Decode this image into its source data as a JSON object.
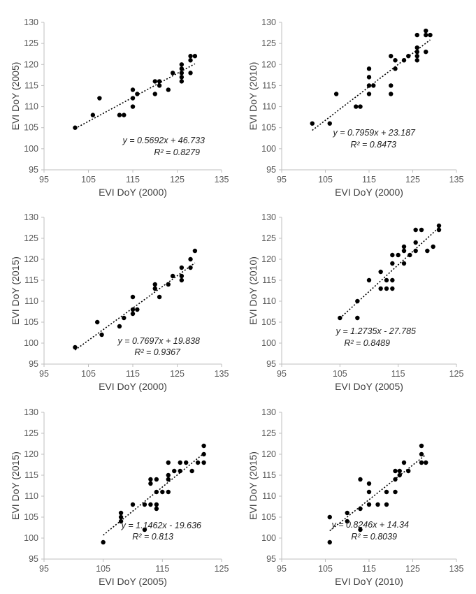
{
  "chart_data": [
    {
      "type": "scatter",
      "xlabel": "EVI DoY (2000)",
      "ylabel": "EVI DoY (2005)",
      "xlim": [
        95,
        135
      ],
      "ylim": [
        95,
        130
      ],
      "xticks": [
        95,
        105,
        115,
        125,
        135
      ],
      "yticks": [
        95,
        100,
        105,
        110,
        115,
        120,
        125,
        130
      ],
      "equation": "y = 0.5692x + 46.733",
      "r2": "R² = 0.8279",
      "trend": {
        "slope": 0.5692,
        "intercept": 46.733,
        "xrange": [
          102,
          129
        ]
      },
      "points": [
        [
          102,
          105
        ],
        [
          106,
          108
        ],
        [
          107.5,
          112
        ],
        [
          112,
          108
        ],
        [
          113,
          108
        ],
        [
          115,
          110
        ],
        [
          115,
          112
        ],
        [
          115,
          114
        ],
        [
          116,
          113
        ],
        [
          120,
          116
        ],
        [
          120,
          113
        ],
        [
          121,
          115
        ],
        [
          121,
          116
        ],
        [
          123,
          114
        ],
        [
          124,
          118
        ],
        [
          126,
          116
        ],
        [
          126,
          117
        ],
        [
          126,
          118
        ],
        [
          126,
          119
        ],
        [
          126,
          120
        ],
        [
          128,
          118
        ],
        [
          128,
          121
        ],
        [
          128,
          122
        ],
        [
          129,
          122
        ]
      ]
    },
    {
      "type": "scatter",
      "xlabel": "EVI DoY (2000)",
      "ylabel": "EVI DoY (2010)",
      "xlim": [
        95,
        135
      ],
      "ylim": [
        95,
        130
      ],
      "xticks": [
        95,
        105,
        115,
        125,
        135
      ],
      "yticks": [
        95,
        100,
        105,
        110,
        115,
        120,
        125,
        130
      ],
      "equation": "y = 0.7959x + 23.187",
      "r2": "R² = 0.8473",
      "trend": {
        "slope": 0.7959,
        "intercept": 23.187,
        "xrange": [
          102,
          129
        ]
      },
      "points": [
        [
          102,
          106
        ],
        [
          106,
          106
        ],
        [
          107.5,
          113
        ],
        [
          112,
          110
        ],
        [
          113,
          110
        ],
        [
          115,
          113
        ],
        [
          115,
          115
        ],
        [
          115,
          117
        ],
        [
          115,
          119
        ],
        [
          116,
          115
        ],
        [
          120,
          113
        ],
        [
          120,
          115
        ],
        [
          120,
          122
        ],
        [
          121,
          119
        ],
        [
          121,
          121
        ],
        [
          123,
          121
        ],
        [
          124,
          122
        ],
        [
          126,
          121
        ],
        [
          126,
          122
        ],
        [
          126,
          123
        ],
        [
          126,
          124
        ],
        [
          126,
          127
        ],
        [
          128,
          123
        ],
        [
          128,
          127
        ],
        [
          128,
          128
        ],
        [
          129,
          127
        ]
      ]
    },
    {
      "type": "scatter",
      "xlabel": "EVI DoY (2000)",
      "ylabel": "EVI DoY (2015)",
      "xlim": [
        95,
        135
      ],
      "ylim": [
        95,
        130
      ],
      "xticks": [
        95,
        105,
        115,
        125,
        135
      ],
      "yticks": [
        95,
        100,
        105,
        110,
        115,
        120,
        125,
        130
      ],
      "equation": "y = 0.7697x + 19.838",
      "r2": "R² = 0.9367",
      "trend": {
        "slope": 0.7697,
        "intercept": 19.838,
        "xrange": [
          102,
          129
        ]
      },
      "points": [
        [
          102,
          99
        ],
        [
          107,
          105
        ],
        [
          108,
          102
        ],
        [
          112,
          104
        ],
        [
          113,
          106
        ],
        [
          115,
          107
        ],
        [
          115,
          108
        ],
        [
          115,
          111
        ],
        [
          116,
          108
        ],
        [
          120,
          113
        ],
        [
          120,
          114
        ],
        [
          121,
          111
        ],
        [
          123,
          114
        ],
        [
          124,
          116
        ],
        [
          126,
          115
        ],
        [
          126,
          116
        ],
        [
          126,
          118
        ],
        [
          128,
          118
        ],
        [
          128,
          120
        ],
        [
          129,
          122
        ]
      ]
    },
    {
      "type": "scatter",
      "xlabel": "EVI DoY (2005)",
      "ylabel": "EVI DoY (2010)",
      "xlim": [
        95,
        125
      ],
      "ylim": [
        95,
        130
      ],
      "xticks": [
        95,
        105,
        115,
        125
      ],
      "yticks": [
        95,
        100,
        105,
        110,
        115,
        120,
        125,
        130
      ],
      "equation": "y = 1.2735x - 27.785",
      "r2": "R² = 0.8489",
      "trend": {
        "slope": 1.2735,
        "intercept": -27.785,
        "xrange": [
          105,
          122
        ]
      },
      "points": [
        [
          105,
          106
        ],
        [
          108,
          106
        ],
        [
          108,
          110
        ],
        [
          110,
          115
        ],
        [
          112,
          113
        ],
        [
          112,
          117
        ],
        [
          113,
          113
        ],
        [
          113,
          115
        ],
        [
          114,
          113
        ],
        [
          114,
          115
        ],
        [
          114,
          119
        ],
        [
          114,
          121
        ],
        [
          115,
          121
        ],
        [
          116,
          119
        ],
        [
          116,
          122
        ],
        [
          116,
          123
        ],
        [
          117,
          121
        ],
        [
          118,
          122
        ],
        [
          118,
          124
        ],
        [
          118,
          127
        ],
        [
          119,
          127
        ],
        [
          120,
          122
        ],
        [
          121,
          123
        ],
        [
          122,
          127
        ],
        [
          122,
          128
        ]
      ]
    },
    {
      "type": "scatter",
      "xlabel": "EVI DoY (2005)",
      "ylabel": "EVI DoY (2015)",
      "xlim": [
        95,
        125
      ],
      "ylim": [
        95,
        130
      ],
      "xticks": [
        95,
        105,
        115,
        125
      ],
      "yticks": [
        95,
        100,
        105,
        110,
        115,
        120,
        125,
        130
      ],
      "equation": "y = 1.1462x - 19.636",
      "r2": "R² = 0.813",
      "trend": {
        "slope": 1.1462,
        "intercept": -19.636,
        "xrange": [
          105,
          122
        ]
      },
      "points": [
        [
          105,
          99
        ],
        [
          108,
          104
        ],
        [
          108,
          105
        ],
        [
          108,
          106
        ],
        [
          110,
          108
        ],
        [
          112,
          102
        ],
        [
          112,
          108
        ],
        [
          113,
          108
        ],
        [
          113,
          113
        ],
        [
          113,
          114
        ],
        [
          114,
          107
        ],
        [
          114,
          108
        ],
        [
          114,
          111
        ],
        [
          114,
          114
        ],
        [
          115,
          111
        ],
        [
          116,
          111
        ],
        [
          116,
          114
        ],
        [
          116,
          115
        ],
        [
          116,
          118
        ],
        [
          117,
          116
        ],
        [
          118,
          116
        ],
        [
          118,
          118
        ],
        [
          119,
          118
        ],
        [
          120,
          116
        ],
        [
          121,
          118
        ],
        [
          122,
          118
        ],
        [
          122,
          120
        ],
        [
          122,
          122
        ]
      ]
    },
    {
      "type": "scatter",
      "xlabel": "EVI DoY (2010)",
      "ylabel": "EVI DoY (2015)",
      "xlim": [
        95,
        135
      ],
      "ylim": [
        95,
        130
      ],
      "xticks": [
        95,
        105,
        115,
        125,
        135
      ],
      "yticks": [
        95,
        100,
        105,
        110,
        115,
        120,
        125,
        130
      ],
      "equation": "y = 0.8246x + 14.34",
      "r2": "R² = 0.8039",
      "trend": {
        "slope": 0.8246,
        "intercept": 14.34,
        "xrange": [
          106,
          128
        ]
      },
      "points": [
        [
          106,
          99
        ],
        [
          106,
          105
        ],
        [
          110,
          104
        ],
        [
          110,
          106
        ],
        [
          113,
          102
        ],
        [
          113,
          107
        ],
        [
          113,
          114
        ],
        [
          115,
          108
        ],
        [
          115,
          111
        ],
        [
          115,
          113
        ],
        [
          117,
          108
        ],
        [
          119,
          108
        ],
        [
          119,
          111
        ],
        [
          121,
          111
        ],
        [
          121,
          114
        ],
        [
          121,
          116
        ],
        [
          122,
          115
        ],
        [
          122,
          116
        ],
        [
          123,
          118
        ],
        [
          124,
          116
        ],
        [
          127,
          118
        ],
        [
          127,
          120
        ],
        [
          127,
          122
        ],
        [
          128,
          118
        ]
      ]
    }
  ]
}
